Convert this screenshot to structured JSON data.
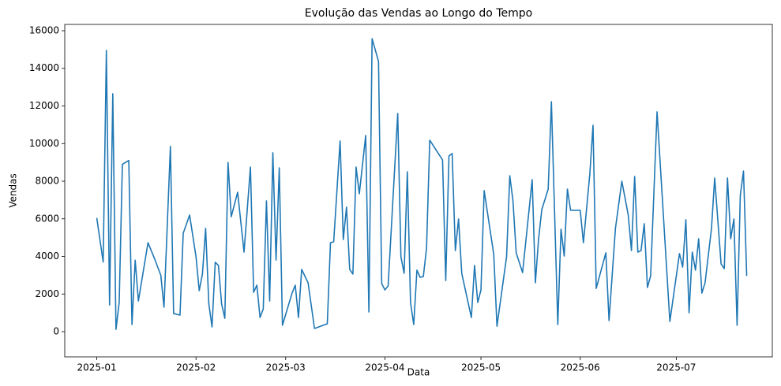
{
  "chart_data": {
    "type": "line",
    "title": "Evolução das Vendas ao Longo do Tempo",
    "x_label": "Data",
    "y_label": "Vendas",
    "x": [
      "2025-01-01",
      "2025-01-03",
      "2025-01-04",
      "2025-01-05",
      "2025-01-06",
      "2025-01-07",
      "2025-01-08",
      "2025-01-09",
      "2025-01-11",
      "2025-01-12",
      "2025-01-13",
      "2025-01-14",
      "2025-01-17",
      "2025-01-19",
      "2025-01-21",
      "2025-01-22",
      "2025-01-24",
      "2025-01-25",
      "2025-01-27",
      "2025-01-28",
      "2025-01-30",
      "2025-02-01",
      "2025-02-02",
      "2025-02-03",
      "2025-02-04",
      "2025-02-05",
      "2025-02-06",
      "2025-02-07",
      "2025-02-08",
      "2025-02-09",
      "2025-02-10",
      "2025-02-11",
      "2025-02-12",
      "2025-02-14",
      "2025-02-16",
      "2025-02-18",
      "2025-02-19",
      "2025-02-20",
      "2025-02-21",
      "2025-02-22",
      "2025-02-23",
      "2025-02-24",
      "2025-02-25",
      "2025-02-26",
      "2025-02-27",
      "2025-02-28",
      "2025-03-03",
      "2025-03-04",
      "2025-03-05",
      "2025-03-06",
      "2025-03-08",
      "2025-03-10",
      "2025-03-14",
      "2025-03-15",
      "2025-03-16",
      "2025-03-18",
      "2025-03-19",
      "2025-03-20",
      "2025-03-21",
      "2025-03-22",
      "2025-03-23",
      "2025-03-24",
      "2025-03-26",
      "2025-03-27",
      "2025-03-28",
      "2025-03-30",
      "2025-03-31",
      "2025-04-01",
      "2025-04-02",
      "2025-04-05",
      "2025-04-06",
      "2025-04-07",
      "2025-04-08",
      "2025-04-09",
      "2025-04-10",
      "2025-04-11",
      "2025-04-12",
      "2025-04-13",
      "2025-04-14",
      "2025-04-15",
      "2025-04-19",
      "2025-04-20",
      "2025-04-21",
      "2025-04-22",
      "2025-04-23",
      "2025-04-24",
      "2025-04-25",
      "2025-04-28",
      "2025-04-29",
      "2025-04-30",
      "2025-05-01",
      "2025-05-02",
      "2025-05-05",
      "2025-05-06",
      "2025-05-09",
      "2025-05-10",
      "2025-05-11",
      "2025-05-12",
      "2025-05-14",
      "2025-05-17",
      "2025-05-18",
      "2025-05-19",
      "2025-05-20",
      "2025-05-22",
      "2025-05-23",
      "2025-05-25",
      "2025-05-26",
      "2025-05-27",
      "2025-05-28",
      "2025-05-29",
      "2025-05-31",
      "2025-06-01",
      "2025-06-02",
      "2025-06-04",
      "2025-06-05",
      "2025-06-06",
      "2025-06-09",
      "2025-06-10",
      "2025-06-12",
      "2025-06-14",
      "2025-06-16",
      "2025-06-17",
      "2025-06-18",
      "2025-06-19",
      "2025-06-20",
      "2025-06-21",
      "2025-06-22",
      "2025-06-23",
      "2025-06-25",
      "2025-06-29",
      "2025-07-02",
      "2025-07-03",
      "2025-07-04",
      "2025-07-05",
      "2025-07-06",
      "2025-07-07",
      "2025-07-08",
      "2025-07-09",
      "2025-07-10",
      "2025-07-12",
      "2025-07-13",
      "2025-07-15",
      "2025-07-16",
      "2025-07-17",
      "2025-07-18",
      "2025-07-19",
      "2025-07-20",
      "2025-07-21",
      "2025-07-22",
      "2025-07-23"
    ],
    "series": [
      {
        "name": "Vendas",
        "color": "#1f77b4",
        "values": [
          6050,
          3700,
          14950,
          1420,
          12650,
          120,
          1550,
          8900,
          9100,
          380,
          3800,
          1630,
          4730,
          3900,
          3000,
          1300,
          9850,
          960,
          880,
          5230,
          6200,
          3980,
          2180,
          3060,
          5490,
          1470,
          250,
          3690,
          3520,
          1470,
          710,
          9000,
          6110,
          7410,
          4230,
          8750,
          2090,
          2470,
          750,
          1210,
          6950,
          1630,
          9510,
          3810,
          8710,
          340,
          2050,
          2470,
          750,
          3310,
          2600,
          170,
          420,
          4730,
          4780,
          10140,
          4900,
          6620,
          3310,
          3060,
          8750,
          7330,
          10430,
          1050,
          15580,
          14370,
          2550,
          2220,
          2430,
          11600,
          3980,
          3100,
          8500,
          1550,
          380,
          3270,
          2890,
          2930,
          4440,
          10180,
          9130,
          2720,
          9340,
          9470,
          4310,
          5990,
          3100,
          750,
          3520,
          1550,
          2220,
          7500,
          4100,
          290,
          3980,
          8290,
          6950,
          4190,
          3140,
          8080,
          2600,
          4940,
          6490,
          7580,
          12230,
          380,
          5450,
          4020,
          7580,
          6450,
          6450,
          6450,
          4730,
          8380,
          10970,
          2300,
          4190,
          590,
          5490,
          8000,
          6200,
          4310,
          8250,
          4230,
          4310,
          5740,
          2350,
          2970,
          11690,
          540,
          4150,
          3430,
          5950,
          1000,
          4230,
          3270,
          4940,
          2050,
          2600,
          5490,
          8170,
          3600,
          3350,
          8170,
          4940,
          5990,
          340,
          7250,
          8540,
          2970
        ]
      }
    ],
    "xlim": [
      "2024-12-22",
      "2025-07-31"
    ],
    "xticks": [
      {
        "value": "2025-01-01",
        "label": "2025-01"
      },
      {
        "value": "2025-02-01",
        "label": "2025-02"
      },
      {
        "value": "2025-03-01",
        "label": "2025-03"
      },
      {
        "value": "2025-04-01",
        "label": "2025-04"
      },
      {
        "value": "2025-05-01",
        "label": "2025-05"
      },
      {
        "value": "2025-06-01",
        "label": "2025-06"
      },
      {
        "value": "2025-07-01",
        "label": "2025-07"
      }
    ],
    "ylim": [
      -1340,
      16335
    ],
    "yticks": [
      0,
      2000,
      4000,
      6000,
      8000,
      10000,
      12000,
      14000,
      16000
    ],
    "grid": false
  }
}
